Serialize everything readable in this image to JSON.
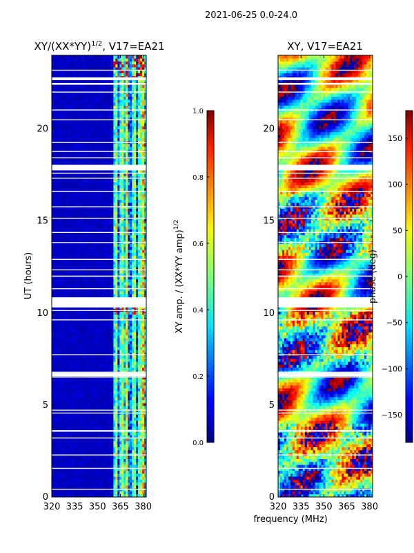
{
  "suptitle": "2021-06-25 0.0-24.0",
  "shared_xlabel": "frequency (MHz)",
  "chart_data": [
    {
      "type": "heatmap",
      "title": "XY/(XX*YY)",
      "title_exponent": "1/2",
      "title_suffix": ", V17=EA21",
      "ylabel": "UT (hours)",
      "xlim": [
        320,
        382
      ],
      "ylim": [
        0,
        24
      ],
      "xticks": [
        320,
        335,
        350,
        365,
        380
      ],
      "yticks": [
        0,
        5,
        10,
        15,
        20
      ],
      "colorscale": "jet",
      "colorbar": {
        "label": "XY amp. / (XX*YY amp)",
        "label_exponent": "1/2",
        "range": [
          0.0,
          1.0
        ],
        "ticks": [
          "0.0",
          "0.2",
          "0.4",
          "0.6",
          "0.8",
          "1.0"
        ]
      },
      "bright_channels_mhz": [
        362,
        366,
        369,
        374,
        378,
        380
      ],
      "blank_rows_ut": [
        [
          10.3,
          10.85
        ],
        [
          17.75,
          18.05
        ],
        [
          6.55,
          6.75
        ],
        [
          22.65,
          22.8
        ],
        [
          22.4,
          22.5
        ]
      ]
    },
    {
      "type": "heatmap",
      "title": "XY, V17=EA21",
      "ylabel": "phase (deg)",
      "xlim": [
        320,
        382
      ],
      "ylim": [
        0,
        24
      ],
      "xticks": [
        320,
        335,
        350,
        365,
        380
      ],
      "yticks": [
        0,
        5,
        10,
        15,
        20
      ],
      "colorscale": "jet",
      "colorbar": {
        "label": "phase (deg)",
        "range": [
          -180,
          180
        ],
        "ticks": [
          "150",
          "100",
          "50",
          "0",
          "−50",
          "−100",
          "−150"
        ]
      },
      "blank_rows_ut": [
        [
          10.3,
          10.85
        ],
        [
          17.75,
          18.05
        ],
        [
          6.55,
          6.75
        ],
        [
          22.65,
          22.8
        ],
        [
          22.4,
          22.5
        ]
      ]
    }
  ]
}
